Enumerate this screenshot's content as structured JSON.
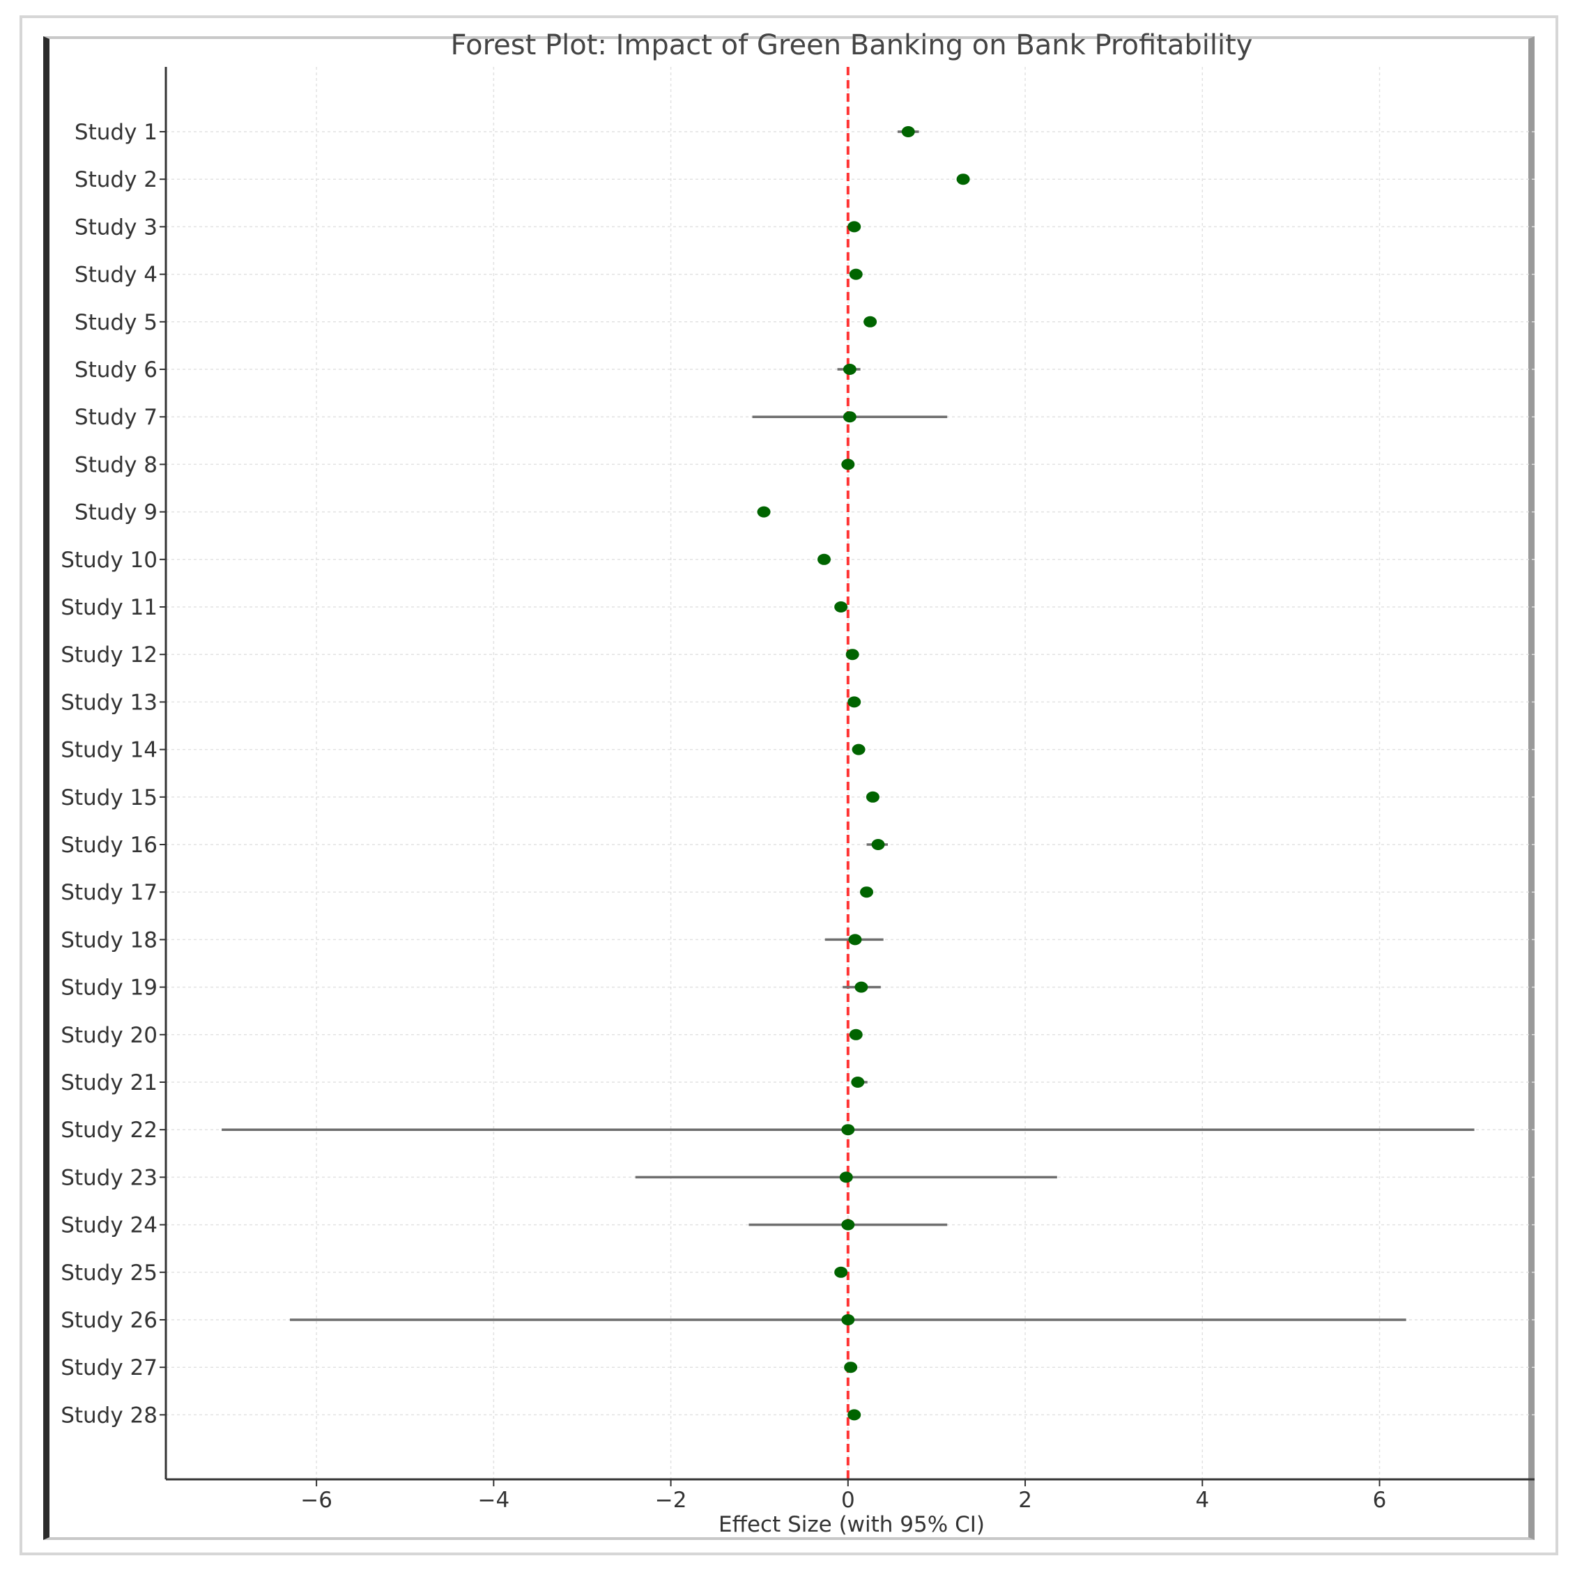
{
  "chart_data": {
    "type": "scatter",
    "title": "Forest Plot: Impact of Green Banking on Bank Profitability",
    "xlabel": "Effect Size (with 95% CI)",
    "ylabel": "",
    "xlim": [
      -7.7,
      7.75
    ],
    "xticks": [
      -6,
      -4,
      -2,
      0,
      2,
      4,
      6
    ],
    "xtick_labels": [
      "−6",
      "−4",
      "−2",
      "0",
      "2",
      "4",
      "6"
    ],
    "reference_line": 0,
    "grid": true,
    "colors": {
      "point": "#006400",
      "ci": "#6e6e6e",
      "reference": "#ff3333",
      "axis": "#333333",
      "grid": "#e2e2e2"
    },
    "categories": [
      "Study 1",
      "Study 2",
      "Study 3",
      "Study 4",
      "Study 5",
      "Study 6",
      "Study 7",
      "Study 8",
      "Study 9",
      "Study 10",
      "Study 11",
      "Study 12",
      "Study 13",
      "Study 14",
      "Study 15",
      "Study 16",
      "Study 17",
      "Study 18",
      "Study 19",
      "Study 20",
      "Study 21",
      "Study 22",
      "Study 23",
      "Study 24",
      "Study 25",
      "Study 26",
      "Study 27",
      "Study 28"
    ],
    "estimates": [
      0.68,
      1.3,
      0.07,
      0.09,
      0.25,
      0.02,
      0.02,
      0.0,
      -0.95,
      -0.27,
      -0.08,
      0.05,
      0.07,
      0.12,
      0.28,
      0.34,
      0.21,
      0.08,
      0.15,
      0.09,
      0.11,
      0.0,
      -0.02,
      0.0,
      -0.08,
      0.0,
      0.03,
      0.07
    ],
    "ci_lower": [
      0.56,
      1.28,
      0.05,
      0.07,
      0.23,
      -0.12,
      -1.08,
      -0.02,
      -0.97,
      -0.29,
      -0.1,
      0.03,
      0.05,
      0.1,
      0.26,
      0.21,
      0.19,
      -0.26,
      -0.06,
      0.07,
      0.04,
      -7.07,
      -2.4,
      -1.12,
      -0.1,
      -6.3,
      0.01,
      0.05
    ],
    "ci_upper": [
      0.8,
      1.32,
      0.09,
      0.11,
      0.27,
      0.14,
      1.12,
      0.02,
      -0.93,
      -0.25,
      -0.06,
      0.07,
      0.09,
      0.14,
      0.3,
      0.45,
      0.23,
      0.4,
      0.37,
      0.11,
      0.22,
      7.07,
      2.36,
      1.12,
      -0.06,
      6.3,
      0.05,
      0.09
    ]
  }
}
